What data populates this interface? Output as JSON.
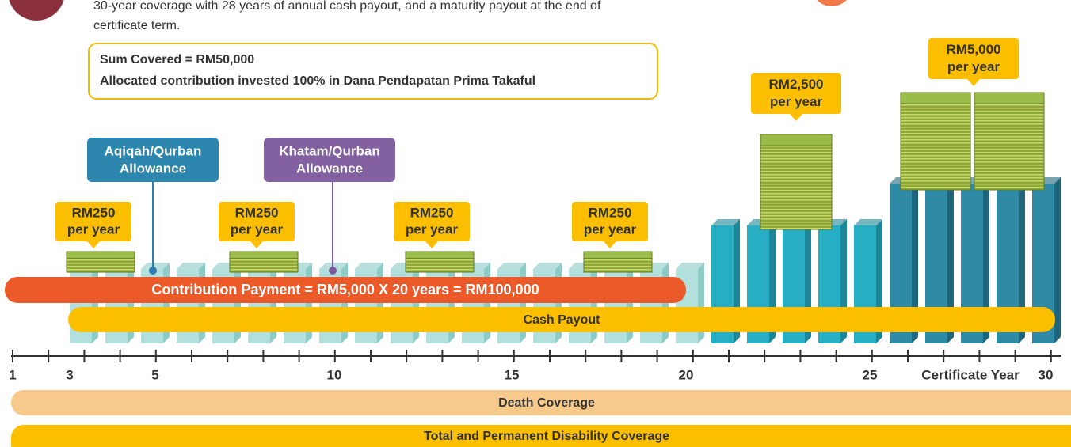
{
  "intro": [
    "30-year coverage with 28 years of annual cash payout, and a maturity payout at the end of",
    "certificate term."
  ],
  "sum_box": [
    "Sum Covered = RM50,000",
    "Allocated contribution invested 100% in Dana Pendapatan Prima Takaful"
  ],
  "allowances": [
    [
      "Aqiqah/Qurban",
      "Allowance"
    ],
    [
      "Khatam/Qurban",
      "Allowance"
    ]
  ],
  "payouts": [
    [
      "RM250",
      "per year"
    ],
    [
      "RM250",
      "per year"
    ],
    [
      "RM250",
      "per year"
    ],
    [
      "RM250",
      "per year"
    ],
    [
      "RM2,500",
      "per year"
    ],
    [
      "RM5,000",
      "per year"
    ]
  ],
  "contribution": "Contribution Payment = RM5,000 X 20 years = RM100,000",
  "cash_payout": "Cash Payout",
  "axis_labels": [
    "1",
    "3",
    "5",
    "10",
    "15",
    "20",
    "25",
    "Certificate Year",
    "30"
  ],
  "death_coverage": "Death Coverage",
  "tpd_coverage": "Total and Permanent Disability Coverage"
}
